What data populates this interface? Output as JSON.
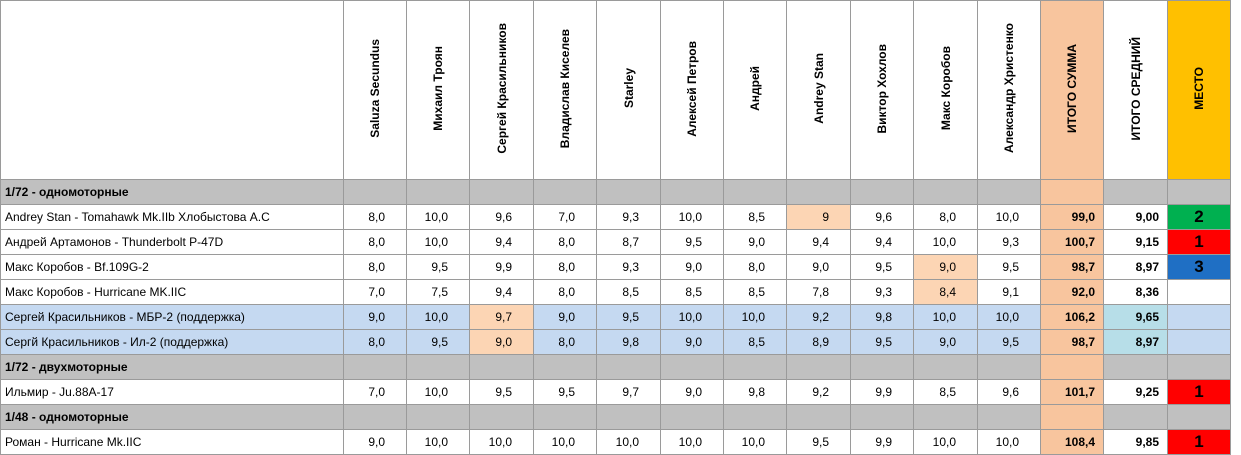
{
  "judges": [
    "Saluza Secundus",
    "Михаил Троян",
    "Сергей Красильников",
    "Владислав Киселев",
    "Starley",
    "Алексей Петров",
    "Андрей",
    "Andrey Stan",
    "Виктор Хохлов",
    "Макс Коробов",
    "Александр Христенко"
  ],
  "totals_header": {
    "sum": "ИТОГО СУММА",
    "avg": "ИТОГО СРЕДНИЙ",
    "place": "МЕСТО"
  },
  "sections": [
    {
      "title": "1/72 - одномоторные",
      "rows": [
        {
          "name": "Andrey Stan - Tomahawk Mk.IIb Хлобыстова А.С",
          "scores": [
            "8,0",
            "10,0",
            "9,6",
            "7,0",
            "9,3",
            "10,0",
            "8,5",
            "9",
            "9,6",
            "8,0",
            "10,0"
          ],
          "sum": "99,0",
          "avg": "9,00",
          "place": "2",
          "place_color": "#00b050",
          "highlight": 7,
          "blue": false
        },
        {
          "name": "Андрей Артамонов - Thunderbolt P-47D",
          "scores": [
            "8,0",
            "10,0",
            "9,4",
            "8,0",
            "8,7",
            "9,5",
            "9,0",
            "9,4",
            "9,4",
            "10,0",
            "9,3"
          ],
          "sum": "100,7",
          "avg": "9,15",
          "place": "1",
          "place_color": "#ff0000",
          "highlight": -1,
          "blue": false
        },
        {
          "name": "Макс Коробов - Bf.109G-2",
          "scores": [
            "8,0",
            "9,5",
            "9,9",
            "8,0",
            "9,3",
            "9,0",
            "8,0",
            "9,0",
            "9,5",
            "9,0",
            "9,5"
          ],
          "sum": "98,7",
          "avg": "8,97",
          "place": "3",
          "place_color": "#1f6fc4",
          "highlight": 9,
          "blue": false
        },
        {
          "name": "Макс Коробов - Hurricane MK.IIC",
          "scores": [
            "7,0",
            "7,5",
            "9,4",
            "8,0",
            "8,5",
            "8,5",
            "8,5",
            "7,8",
            "9,3",
            "8,4",
            "9,1"
          ],
          "sum": "92,0",
          "avg": "8,36",
          "place": "",
          "place_color": "#ffffff",
          "highlight": 9,
          "blue": false
        },
        {
          "name": "Сергей Красильников - МБР-2 (поддержка)",
          "scores": [
            "9,0",
            "10,0",
            "9,7",
            "9,0",
            "9,5",
            "10,0",
            "10,0",
            "9,2",
            "9,8",
            "10,0",
            "10,0"
          ],
          "sum": "106,2",
          "avg": "9,65",
          "place": "",
          "place_color": "",
          "highlight": 2,
          "blue": true
        },
        {
          "name": "Сергй Красильников - Ил-2 (поддержка)",
          "scores": [
            "8,0",
            "9,5",
            "9,0",
            "8,0",
            "9,8",
            "9,0",
            "8,5",
            "8,9",
            "9,5",
            "9,0",
            "9,5"
          ],
          "sum": "98,7",
          "avg": "8,97",
          "place": "",
          "place_color": "",
          "highlight": 2,
          "blue": true
        }
      ]
    },
    {
      "title": "1/72 - двухмоторные",
      "rows": [
        {
          "name": "Ильмир - Ju.88A-17",
          "scores": [
            "7,0",
            "10,0",
            "9,5",
            "9,5",
            "9,7",
            "9,0",
            "9,8",
            "9,2",
            "9,9",
            "8,5",
            "9,6"
          ],
          "sum": "101,7",
          "avg": "9,25",
          "place": "1",
          "place_color": "#ff0000",
          "highlight": -1,
          "blue": false
        }
      ]
    },
    {
      "title": "1/48 - одномоторные",
      "rows": [
        {
          "name": "Роман - Hurricane Mk.IIC",
          "scores": [
            "9,0",
            "10,0",
            "10,0",
            "10,0",
            "10,0",
            "10,0",
            "10,0",
            "9,5",
            "9,9",
            "10,0",
            "10,0"
          ],
          "sum": "108,4",
          "avg": "9,85",
          "place": "1",
          "place_color": "#ff0000",
          "highlight": -1,
          "blue": false
        }
      ]
    }
  ]
}
